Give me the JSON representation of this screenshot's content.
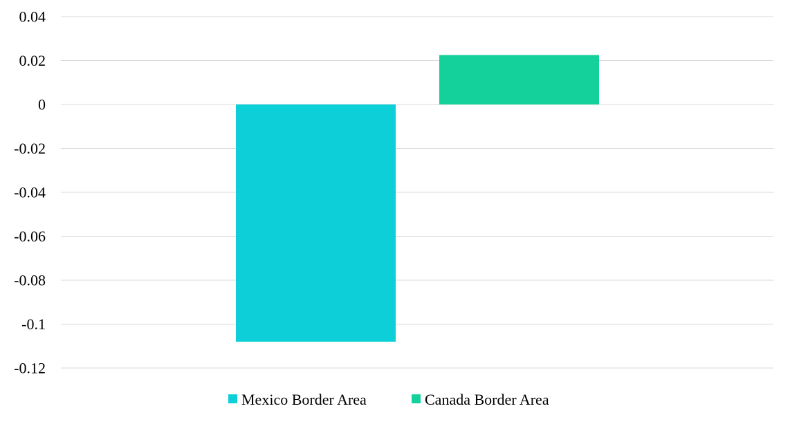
{
  "chart_data": {
    "type": "bar",
    "title": "",
    "xlabel": "",
    "ylabel": "",
    "ylim": [
      -0.12,
      0.04
    ],
    "yticks": [
      0.04,
      0.02,
      0,
      -0.02,
      -0.04,
      -0.06,
      -0.08,
      -0.1,
      -0.12
    ],
    "ytick_labels": [
      "0.04",
      "0.02",
      "0",
      "-0.02",
      "-0.04",
      "-0.06",
      "-0.08",
      "-0.1",
      "-0.12"
    ],
    "grid": true,
    "legend_position": "bottom",
    "series": [
      {
        "name": "Mexico Border Area",
        "value": -0.108,
        "color": "#0dcfd8"
      },
      {
        "name": "Canada Border Area",
        "value": 0.0225,
        "color": "#14d19b"
      }
    ]
  }
}
